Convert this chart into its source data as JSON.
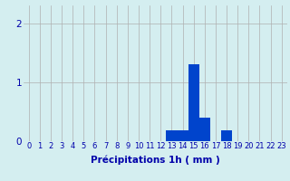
{
  "categories": [
    0,
    1,
    2,
    3,
    4,
    5,
    6,
    7,
    8,
    9,
    10,
    11,
    12,
    13,
    14,
    15,
    16,
    17,
    18,
    19,
    20,
    21,
    22,
    23
  ],
  "values": [
    0,
    0,
    0,
    0,
    0,
    0,
    0,
    0,
    0,
    0,
    0,
    0,
    0,
    0.18,
    0.18,
    1.3,
    0.4,
    0,
    0.18,
    0,
    0,
    0,
    0,
    0
  ],
  "bar_color": "#0044cc",
  "background_color": "#d4eef0",
  "grid_color": "#b0b0b0",
  "ylabel_ticks": [
    0,
    1,
    2
  ],
  "ylim": [
    0,
    2.3
  ],
  "xlim": [
    -0.5,
    23.5
  ],
  "xlabel": "Précipitations 1h ( mm )",
  "xlabel_color": "#0000aa",
  "tick_color": "#0000aa",
  "bar_width": 1.0,
  "xlabel_fontsize": 7.5,
  "tick_fontsize": 6.0,
  "ytick_fontsize": 7.5
}
